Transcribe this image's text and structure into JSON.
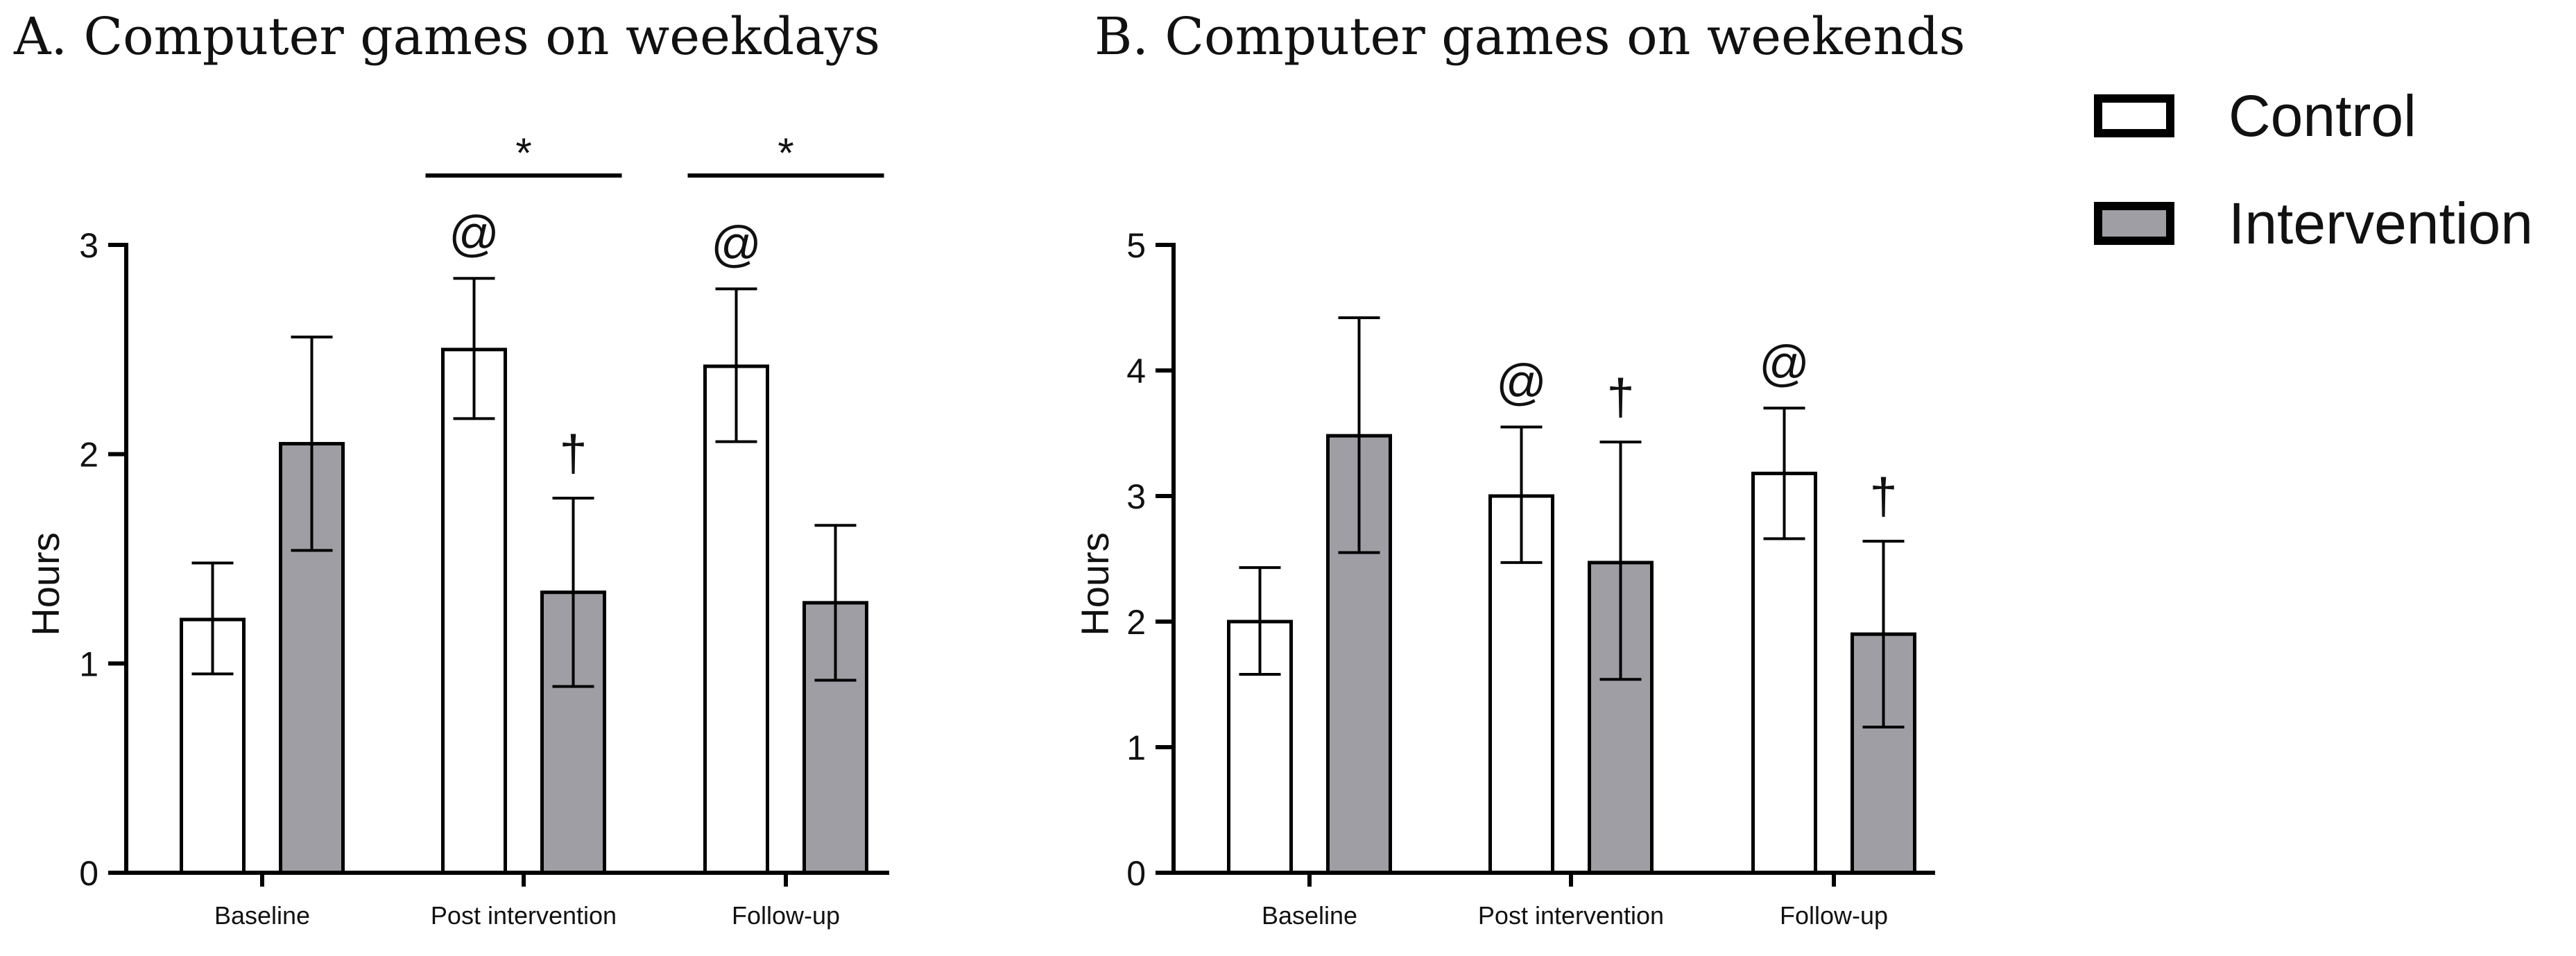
{
  "legend": {
    "items": [
      {
        "label": "Control",
        "color": "#ffffff"
      },
      {
        "label": "Intervention",
        "color": "#9e9ea4"
      }
    ]
  },
  "chart_data": [
    {
      "type": "bar",
      "title": "A. Computer games on weekdays",
      "ylabel": "Hours",
      "xlabel": "",
      "ylim": [
        0,
        3
      ],
      "yticks": [
        0,
        1,
        2,
        3
      ],
      "categories": [
        "Baseline",
        "Post intervention",
        "Follow-up"
      ],
      "series": [
        {
          "name": "Control",
          "color": "#ffffff",
          "values": [
            1.21,
            2.5,
            2.42
          ],
          "err_low": [
            0.95,
            2.17,
            2.06
          ],
          "err_high": [
            1.48,
            2.84,
            2.79
          ]
        },
        {
          "name": "Intervention",
          "color": "#9e9ea4",
          "values": [
            2.05,
            1.34,
            1.29
          ],
          "err_low": [
            1.54,
            0.89,
            0.92
          ],
          "err_high": [
            2.56,
            1.79,
            1.66
          ]
        }
      ],
      "annotations": [
        {
          "text": "@",
          "category": 1,
          "series": 0
        },
        {
          "text": "@",
          "category": 2,
          "series": 0
        },
        {
          "text": "†",
          "category": 1,
          "series": 1
        }
      ],
      "significance": [
        {
          "text": "*",
          "category": 1
        },
        {
          "text": "*",
          "category": 2
        }
      ]
    },
    {
      "type": "bar",
      "title": "B. Computer games on weekends",
      "ylabel": "Hours",
      "xlabel": "",
      "ylim": [
        0,
        5
      ],
      "yticks": [
        0,
        1,
        2,
        3,
        4,
        5
      ],
      "categories": [
        "Baseline",
        "Post intervention",
        "Follow-up"
      ],
      "series": [
        {
          "name": "Control",
          "color": "#ffffff",
          "values": [
            2.0,
            3.0,
            3.18
          ],
          "err_low": [
            1.58,
            2.47,
            2.66
          ],
          "err_high": [
            2.43,
            3.55,
            3.7
          ]
        },
        {
          "name": "Intervention",
          "color": "#9e9ea4",
          "values": [
            3.48,
            2.47,
            1.9
          ],
          "err_low": [
            2.55,
            1.54,
            1.16
          ],
          "err_high": [
            4.42,
            3.43,
            2.64
          ]
        }
      ],
      "annotations": [
        {
          "text": "@",
          "category": 1,
          "series": 0
        },
        {
          "text": "@",
          "category": 2,
          "series": 0
        },
        {
          "text": "†",
          "category": 1,
          "series": 1
        },
        {
          "text": "†",
          "category": 2,
          "series": 1
        }
      ],
      "significance": []
    }
  ]
}
